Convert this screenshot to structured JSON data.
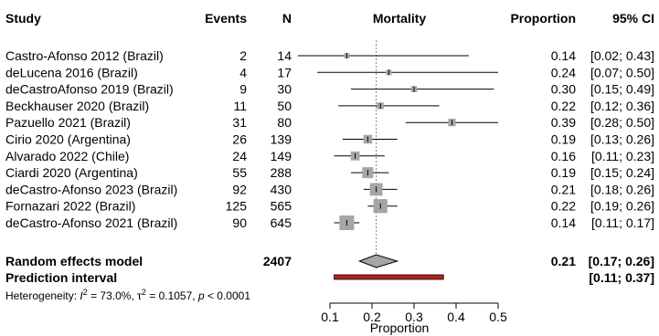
{
  "header": {
    "study": "Study",
    "events": "Events",
    "n": "N",
    "plot": "Mortality",
    "proportion": "Proportion",
    "ci": "95% CI"
  },
  "studies": [
    {
      "label": "Castro-Afonso 2012 (Brazil)",
      "events": "2",
      "n": "14",
      "proportion": "0.14",
      "ci": "[0.02; 0.43]"
    },
    {
      "label": "deLucena 2016 (Brazil)",
      "events": "4",
      "n": "17",
      "proportion": "0.24",
      "ci": "[0.07; 0.50]"
    },
    {
      "label": "deCastroAfonso 2019 (Brazil)",
      "events": "9",
      "n": "30",
      "proportion": "0.30",
      "ci": "[0.15; 0.49]"
    },
    {
      "label": "Beckhauser 2020 (Brazil)",
      "events": "11",
      "n": "50",
      "proportion": "0.22",
      "ci": "[0.12; 0.36]"
    },
    {
      "label": "Pazuello 2021 (Brazil)",
      "events": "31",
      "n": "80",
      "proportion": "0.39",
      "ci": "[0.28; 0.50]"
    },
    {
      "label": "Cirio 2020 (Argentina)",
      "events": "26",
      "n": "139",
      "proportion": "0.19",
      "ci": "[0.13; 0.26]"
    },
    {
      "label": "Alvarado 2022 (Chile)",
      "events": "24",
      "n": "149",
      "proportion": "0.16",
      "ci": "[0.11; 0.23]"
    },
    {
      "label": "Ciardi 2020 (Argentina)",
      "events": "55",
      "n": "288",
      "proportion": "0.19",
      "ci": "[0.15; 0.24]"
    },
    {
      "label": "deCastro-Afonso 2023 (Brazil)",
      "events": "92",
      "n": "430",
      "proportion": "0.21",
      "ci": "[0.18; 0.26]"
    },
    {
      "label": "Fornazari 2022 (Brazil)",
      "events": "125",
      "n": "565",
      "proportion": "0.22",
      "ci": "[0.19; 0.26]"
    },
    {
      "label": "deCastro-Afonso 2021 (Brazil)",
      "events": "90",
      "n": "645",
      "proportion": "0.14",
      "ci": "[0.11; 0.17]"
    }
  ],
  "summary": {
    "random_label": "Random effects model",
    "total_n": "2407",
    "random_proportion": "0.21",
    "random_ci": "[0.17; 0.26]",
    "prediction_label": "Prediction interval",
    "prediction_ci": "[0.11; 0.37]",
    "heterogeneity_prefix": "Heterogeneity: ",
    "i2_symbol": "I",
    "i2_value": " = 73.0%, ",
    "tau2_symbol": "τ",
    "tau2_value": " = 0.1057, ",
    "p_symbol": "p",
    "p_value": " < 0.0001"
  },
  "chart_data": {
    "type": "forest",
    "xlabel": "Proportion",
    "xlim": [
      0.05,
      0.5
    ],
    "xticks": [
      "0.1",
      "0.2",
      "0.3",
      "0.4",
      "0.5"
    ],
    "reference_line": 0.21,
    "studies": [
      {
        "study": "Castro-Afonso 2012 (Brazil)",
        "events": 2,
        "n": 14,
        "estimate": 0.14,
        "lower": 0.02,
        "upper": 0.43
      },
      {
        "study": "deLucena 2016 (Brazil)",
        "events": 4,
        "n": 17,
        "estimate": 0.24,
        "lower": 0.07,
        "upper": 0.5
      },
      {
        "study": "deCastroAfonso 2019 (Brazil)",
        "events": 9,
        "n": 30,
        "estimate": 0.3,
        "lower": 0.15,
        "upper": 0.49
      },
      {
        "study": "Beckhauser 2020 (Brazil)",
        "events": 11,
        "n": 50,
        "estimate": 0.22,
        "lower": 0.12,
        "upper": 0.36
      },
      {
        "study": "Pazuello 2021 (Brazil)",
        "events": 31,
        "n": 80,
        "estimate": 0.39,
        "lower": 0.28,
        "upper": 0.5
      },
      {
        "study": "Cirio 2020 (Argentina)",
        "events": 26,
        "n": 139,
        "estimate": 0.19,
        "lower": 0.13,
        "upper": 0.26
      },
      {
        "study": "Alvarado 2022 (Chile)",
        "events": 24,
        "n": 149,
        "estimate": 0.16,
        "lower": 0.11,
        "upper": 0.23
      },
      {
        "study": "Ciardi 2020 (Argentina)",
        "events": 55,
        "n": 288,
        "estimate": 0.19,
        "lower": 0.15,
        "upper": 0.24
      },
      {
        "study": "deCastro-Afonso 2023 (Brazil)",
        "events": 92,
        "n": 430,
        "estimate": 0.21,
        "lower": 0.18,
        "upper": 0.26
      },
      {
        "study": "Fornazari 2022 (Brazil)",
        "events": 125,
        "n": 565,
        "estimate": 0.22,
        "lower": 0.19,
        "upper": 0.26
      },
      {
        "study": "deCastro-Afonso 2021 (Brazil)",
        "events": 90,
        "n": 645,
        "estimate": 0.14,
        "lower": 0.11,
        "upper": 0.17
      }
    ],
    "random_effects": {
      "estimate": 0.21,
      "lower": 0.17,
      "upper": 0.26,
      "total_n": 2407
    },
    "prediction_interval": {
      "lower": 0.11,
      "upper": 0.37
    },
    "heterogeneity": {
      "I2": "73.0%",
      "tau2": 0.1057,
      "p": "< 0.0001"
    },
    "colors": {
      "square": "#a6a6a6",
      "diamond": "#a6a6a6",
      "prediction_bar": "#b22222",
      "line": "#000000",
      "reference": "#808080"
    }
  }
}
